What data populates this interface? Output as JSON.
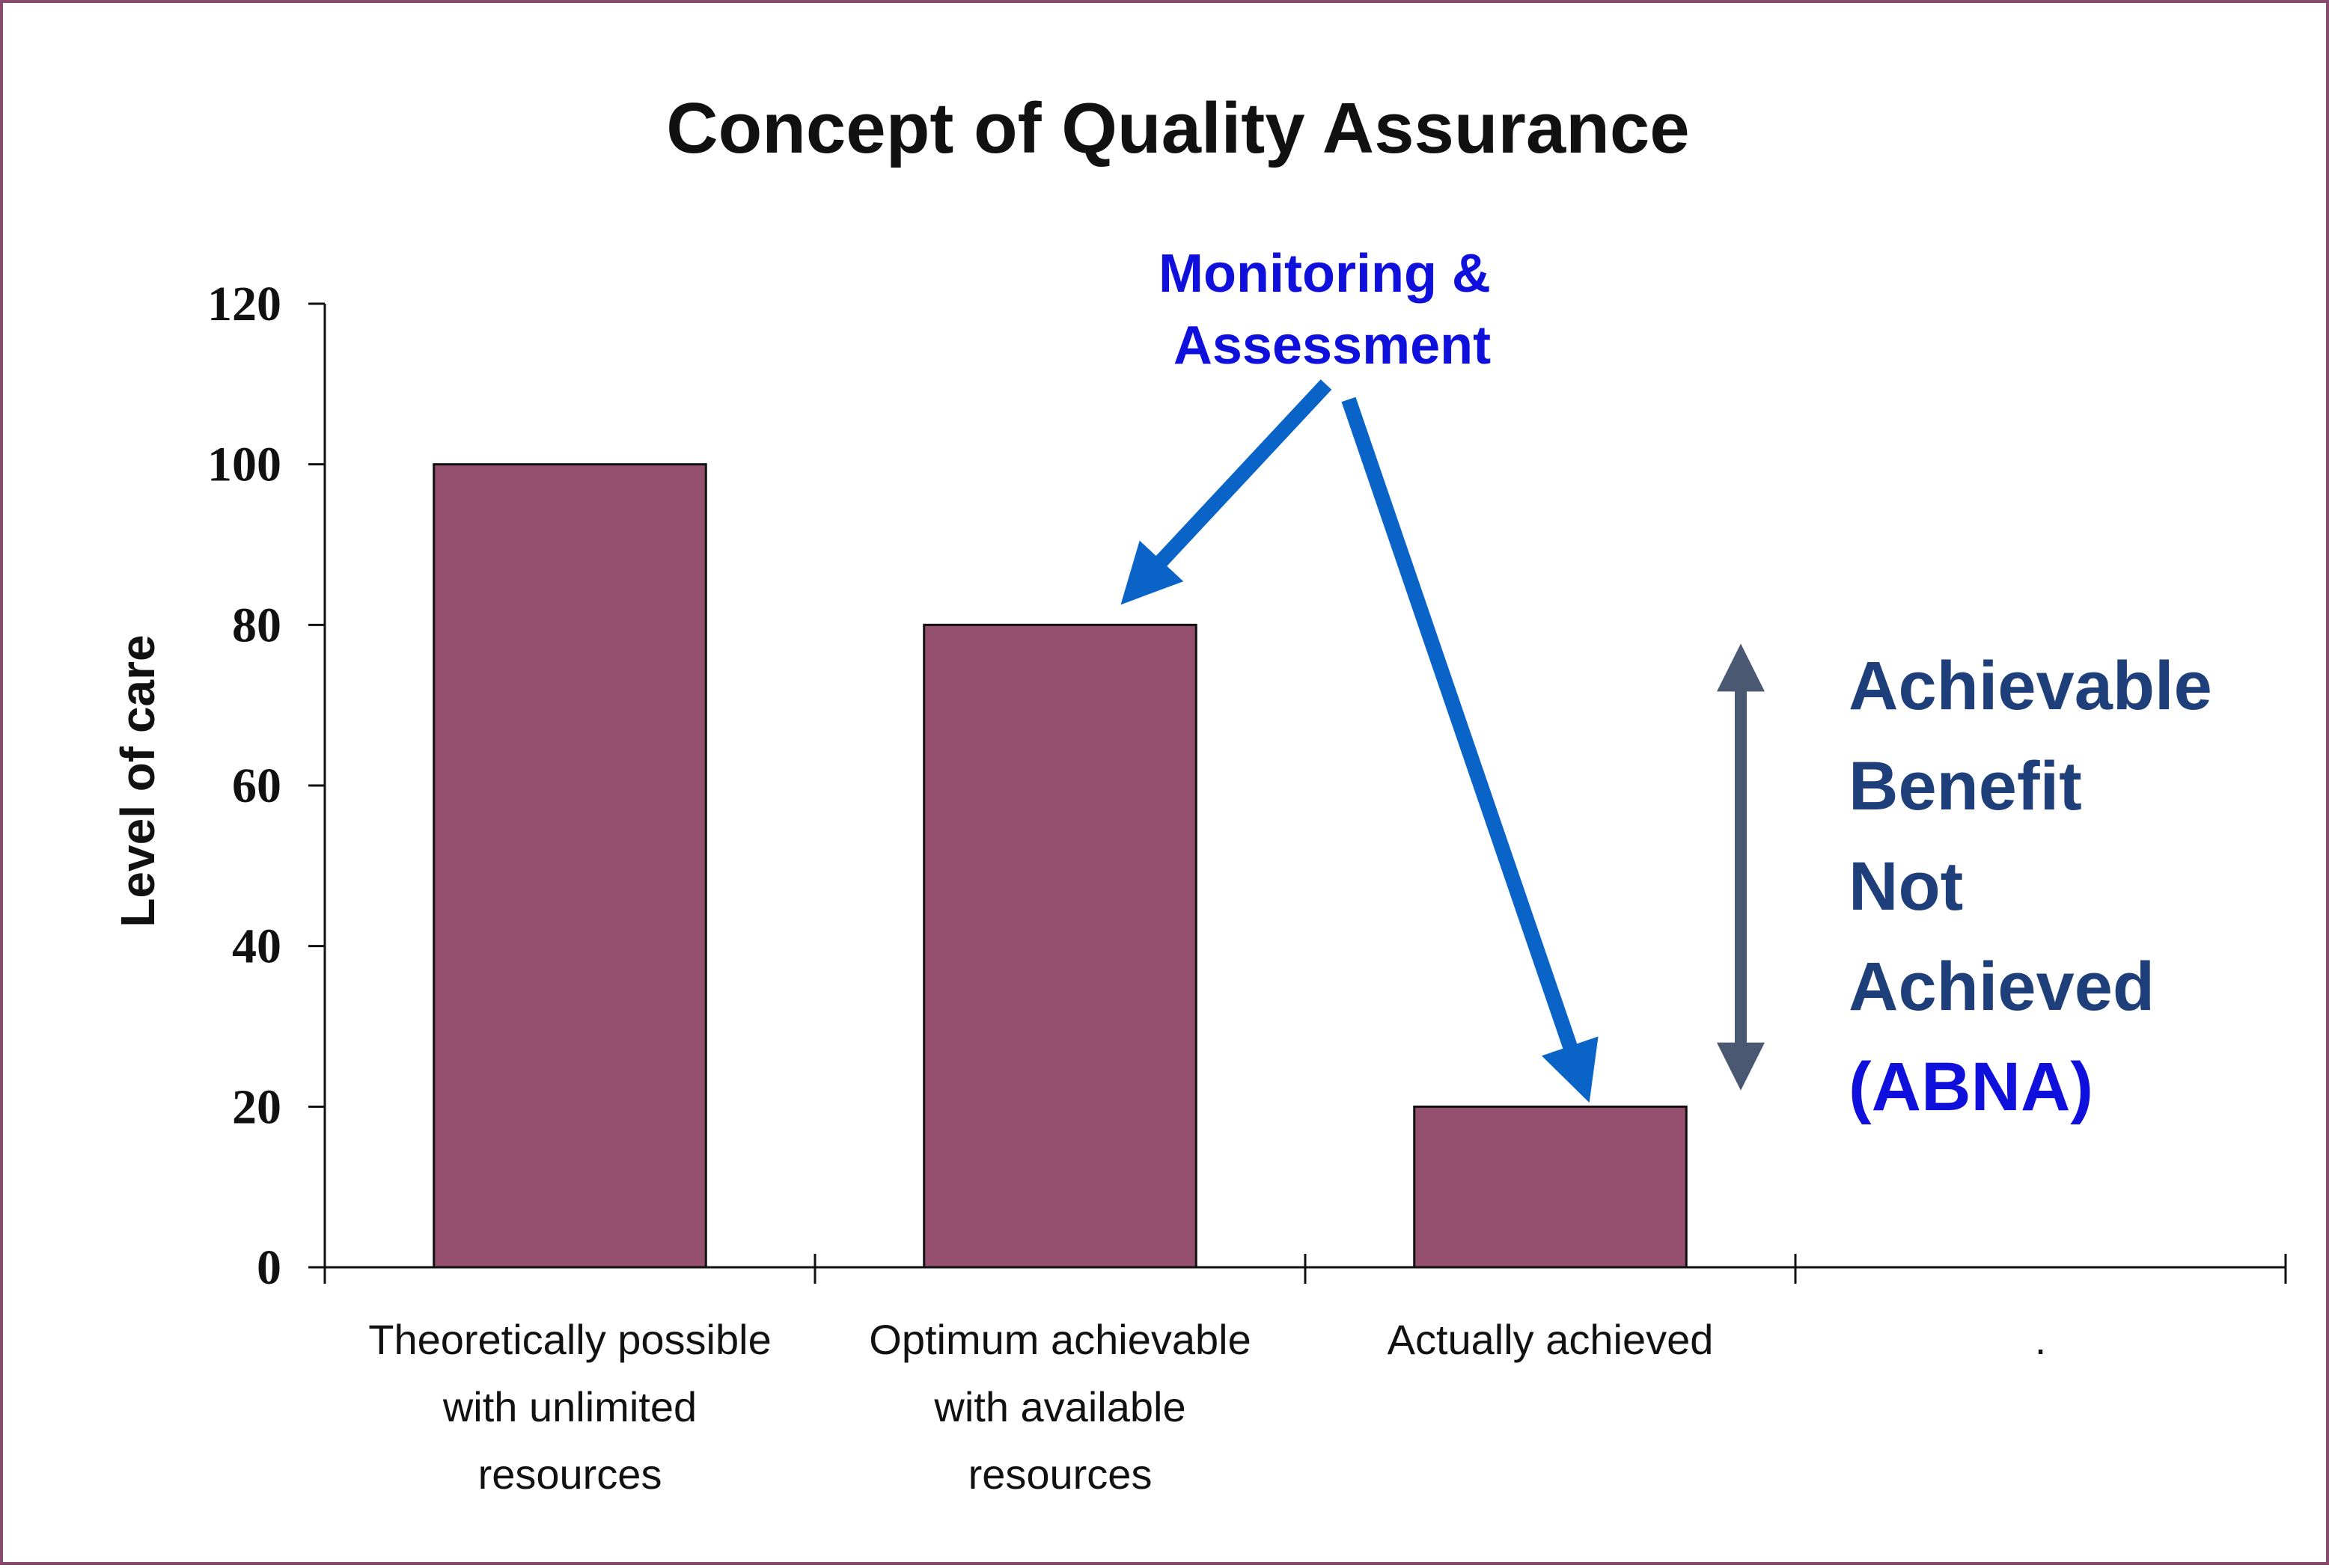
{
  "chart_data": {
    "type": "bar",
    "title": "Concept of Quality Assurance",
    "ylabel": "Level of care",
    "xlabel": "",
    "ylim": [
      0,
      120
    ],
    "yticks": [
      0,
      20,
      40,
      60,
      80,
      100,
      120
    ],
    "categories": [
      [
        "Theoretically possible",
        "with unlimited",
        "resources"
      ],
      [
        "Optimum achievable",
        "with available",
        "resources"
      ],
      [
        "Actually achieved"
      ],
      [
        "."
      ]
    ],
    "values": [
      100,
      80,
      20,
      null
    ],
    "bar_color": "#954f6f",
    "annotations": {
      "monitoring": [
        "Monitoring &",
        "Assessment"
      ],
      "abna": [
        "Achievable",
        "Benefit",
        "Not",
        "Achieved",
        "(ABNA)"
      ]
    }
  },
  "colors": {
    "frame": "#8a4a6e",
    "annotation_arrow": "#0a64c8",
    "gap_arrow": "#4a5872",
    "monitoring_text": "#1010dd",
    "abna_text": "#1f3f7a",
    "abna_acronym": "#1010dd"
  }
}
